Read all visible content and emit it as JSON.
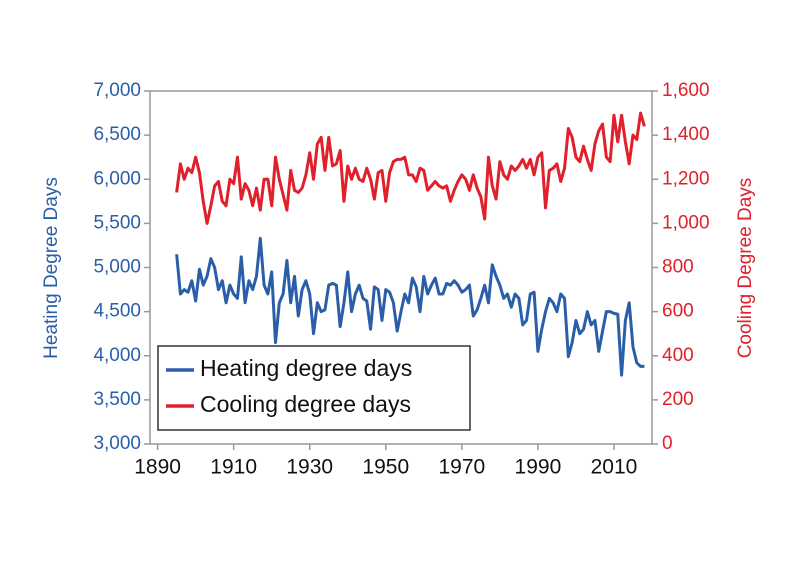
{
  "chart_data": {
    "type": "line",
    "y_label": "Heating Degree Days",
    "y2_label": "Cooling Degree Days",
    "x": [
      1895,
      1896,
      1897,
      1898,
      1899,
      1900,
      1901,
      1902,
      1903,
      1904,
      1905,
      1906,
      1907,
      1908,
      1909,
      1910,
      1911,
      1912,
      1913,
      1914,
      1915,
      1916,
      1917,
      1918,
      1919,
      1920,
      1921,
      1922,
      1923,
      1924,
      1925,
      1926,
      1927,
      1928,
      1929,
      1930,
      1931,
      1932,
      1933,
      1934,
      1935,
      1936,
      1937,
      1938,
      1939,
      1940,
      1941,
      1942,
      1943,
      1944,
      1945,
      1946,
      1947,
      1948,
      1949,
      1950,
      1951,
      1952,
      1953,
      1954,
      1955,
      1956,
      1957,
      1958,
      1959,
      1960,
      1961,
      1962,
      1963,
      1964,
      1965,
      1966,
      1967,
      1968,
      1969,
      1970,
      1971,
      1972,
      1973,
      1974,
      1975,
      1976,
      1977,
      1978,
      1979,
      1980,
      1981,
      1982,
      1983,
      1984,
      1985,
      1986,
      1987,
      1988,
      1989,
      1990,
      1991,
      1992,
      1993,
      1994,
      1995,
      1996,
      1997,
      1998,
      1999,
      2000,
      2001,
      2002,
      2003,
      2004,
      2005,
      2006,
      2007,
      2008,
      2009,
      2010,
      2011,
      2012,
      2013,
      2014,
      2015,
      2016,
      2017,
      2018
    ],
    "series": [
      {
        "name": "Heating degree days",
        "color": "#2a5ea8",
        "axis": "y",
        "values": [
          5150,
          4700,
          4750,
          4720,
          4850,
          4620,
          4980,
          4800,
          4900,
          5100,
          5000,
          4750,
          4850,
          4600,
          4800,
          4700,
          4650,
          5120,
          4600,
          4850,
          4750,
          4900,
          5330,
          4800,
          4700,
          4950,
          4150,
          4600,
          4700,
          5080,
          4600,
          4900,
          4450,
          4750,
          4850,
          4700,
          4250,
          4600,
          4500,
          4520,
          4800,
          4820,
          4800,
          4330,
          4600,
          4950,
          4500,
          4700,
          4800,
          4650,
          4620,
          4300,
          4780,
          4750,
          4400,
          4750,
          4720,
          4600,
          4280,
          4500,
          4700,
          4600,
          4880,
          4780,
          4500,
          4900,
          4700,
          4800,
          4880,
          4700,
          4700,
          4820,
          4800,
          4850,
          4800,
          4720,
          4750,
          4800,
          4450,
          4520,
          4650,
          4800,
          4600,
          5030,
          4900,
          4800,
          4650,
          4700,
          4550,
          4700,
          4650,
          4350,
          4400,
          4700,
          4720,
          4050,
          4300,
          4500,
          4650,
          4600,
          4500,
          4700,
          4650,
          3990,
          4150,
          4400,
          4250,
          4300,
          4500,
          4350,
          4400,
          4050,
          4280,
          4500,
          4500,
          4480,
          4470,
          3780,
          4400,
          4600,
          4100,
          3920,
          3880,
          3880
        ]
      },
      {
        "name": "Cooling degree days",
        "color": "#e0202a",
        "axis": "y2",
        "values": [
          1140,
          1270,
          1200,
          1250,
          1230,
          1300,
          1230,
          1100,
          1000,
          1080,
          1170,
          1190,
          1100,
          1080,
          1200,
          1180,
          1300,
          1110,
          1180,
          1150,
          1080,
          1160,
          1060,
          1200,
          1200,
          1080,
          1300,
          1200,
          1130,
          1060,
          1240,
          1150,
          1140,
          1160,
          1220,
          1320,
          1200,
          1360,
          1390,
          1240,
          1390,
          1260,
          1270,
          1330,
          1100,
          1260,
          1200,
          1250,
          1200,
          1190,
          1250,
          1200,
          1110,
          1230,
          1240,
          1100,
          1230,
          1280,
          1290,
          1290,
          1300,
          1220,
          1220,
          1190,
          1250,
          1240,
          1150,
          1170,
          1190,
          1170,
          1160,
          1170,
          1100,
          1150,
          1190,
          1220,
          1200,
          1150,
          1220,
          1160,
          1120,
          1020,
          1300,
          1170,
          1110,
          1280,
          1220,
          1200,
          1260,
          1240,
          1260,
          1290,
          1250,
          1290,
          1220,
          1300,
          1320,
          1070,
          1240,
          1250,
          1270,
          1190,
          1250,
          1430,
          1390,
          1300,
          1280,
          1350,
          1290,
          1240,
          1360,
          1420,
          1450,
          1300,
          1280,
          1490,
          1370,
          1490,
          1370,
          1270,
          1400,
          1380,
          1500,
          1440
        ]
      }
    ],
    "xlim": [
      1888,
      2020
    ],
    "xticks": [
      1890,
      1910,
      1930,
      1950,
      1970,
      1990,
      2010
    ],
    "ylim": [
      3000,
      7000
    ],
    "yticks": [
      {
        "value": 3000,
        "label": "3,000"
      },
      {
        "value": 3500,
        "label": "3,500"
      },
      {
        "value": 4000,
        "label": "4,000"
      },
      {
        "value": 4500,
        "label": "4,500"
      },
      {
        "value": 5000,
        "label": "5,000"
      },
      {
        "value": 5500,
        "label": "5,500"
      },
      {
        "value": 6000,
        "label": "6,000"
      },
      {
        "value": 6500,
        "label": "6,500"
      },
      {
        "value": 7000,
        "label": "7,000"
      }
    ],
    "y2lim": [
      0,
      1600
    ],
    "y2ticks": [
      0,
      200,
      400,
      600,
      800,
      {
        "value": 1000,
        "label": "1,000"
      },
      {
        "value": 1200,
        "label": "1,200"
      },
      {
        "value": 1400,
        "label": "1,400"
      },
      {
        "value": 1600,
        "label": "1,600"
      }
    ],
    "legend": "lower left"
  }
}
